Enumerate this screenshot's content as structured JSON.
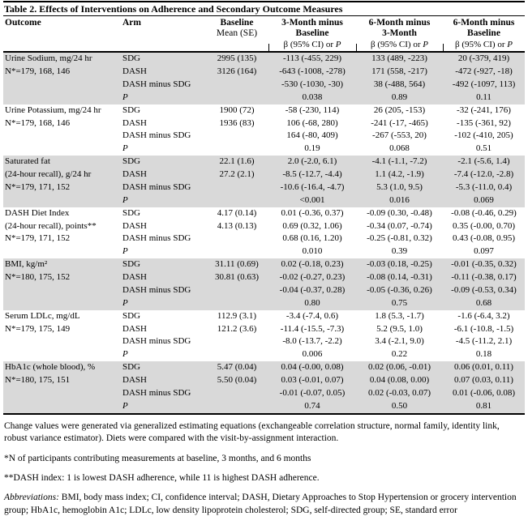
{
  "title": "Table 2. Effects of Interventions on Adherence and Secondary Outcome Measures",
  "colors": {
    "background": "#ffffff",
    "text": "#000000",
    "shaded_band": "#d9d9d9",
    "rule": "#000000"
  },
  "header": {
    "outcome": "Outcome",
    "arm": "Arm",
    "baseline": {
      "line1": "Baseline",
      "line2": "Mean (SE)"
    },
    "deltas": [
      {
        "line1": "3-Month minus",
        "line2": "Baseline"
      },
      {
        "line1": "6-Month minus",
        "line2": "3-Month"
      },
      {
        "line1": "6-Month minus",
        "line2": "Baseline"
      }
    ],
    "beta_prefix": "β (95% CI) or ",
    "beta_p": "P"
  },
  "groups": [
    {
      "outcome_lines": [
        "Urine Sodium, mg/24 hr",
        "N*=179, 168, 146"
      ],
      "shaded": true,
      "rows": [
        {
          "arm": "SDG",
          "baseline": "2995 (135)",
          "cells": [
            "-113 (-455, 229)",
            "133 (489, -223)",
            "20 (-379, 419)"
          ]
        },
        {
          "arm": "DASH",
          "baseline": "3126 (164)",
          "cells": [
            "-643 (-1008, -278)",
            "171 (558, -217)",
            "-472 (-927, -18)"
          ]
        },
        {
          "arm": "DASH minus SDG",
          "baseline": "",
          "cells": [
            "-530 (-1030, -30)",
            "38 (-488, 564)",
            "-492 (-1097, 113)"
          ]
        },
        {
          "arm": "P",
          "baseline": "",
          "cells": [
            "0.038",
            "0.89",
            "0.11"
          ]
        }
      ]
    },
    {
      "outcome_lines": [
        "Urine Potassium, mg/24 hr",
        "N*=179, 168, 146"
      ],
      "shaded": false,
      "rows": [
        {
          "arm": "SDG",
          "baseline": "1900 (72)",
          "cells": [
            "-58 (-230, 114)",
            "26 (205, -153)",
            "-32 (-241, 176)"
          ]
        },
        {
          "arm": "DASH",
          "baseline": "1936 (83)",
          "cells": [
            "106 (-68, 280)",
            "-241 (-17, -465)",
            "-135 (-361, 92)"
          ]
        },
        {
          "arm": "DASH minus SDG",
          "baseline": "",
          "cells": [
            "164 (-80, 409)",
            "-267 (-553, 20)",
            "-102 (-410, 205)"
          ]
        },
        {
          "arm": "P",
          "baseline": "",
          "cells": [
            "0.19",
            "0.068",
            "0.51"
          ]
        }
      ]
    },
    {
      "outcome_lines": [
        "Saturated fat",
        "(24-hour recall), g/24 hr",
        "N*=179, 171, 152"
      ],
      "shaded": true,
      "rows": [
        {
          "arm": "SDG",
          "baseline": "22.1 (1.6)",
          "cells": [
            "2.0 (-2.0, 6.1)",
            "-4.1 (-1.1, -7.2)",
            "-2.1 (-5.6, 1.4)"
          ]
        },
        {
          "arm": "DASH",
          "baseline": "27.2 (2.1)",
          "cells": [
            "-8.5 (-12.7, -4.4)",
            "1.1 (4.2, -1.9)",
            "-7.4 (-12.0, -2.8)"
          ]
        },
        {
          "arm": "DASH minus SDG",
          "baseline": "",
          "cells": [
            "-10.6 (-16.4, -4.7)",
            "5.3 (1.0, 9.5)",
            "-5.3 (-11.0, 0.4)"
          ]
        },
        {
          "arm": "P",
          "baseline": "",
          "cells": [
            "<0.001",
            "0.016",
            "0.069"
          ]
        }
      ]
    },
    {
      "outcome_lines": [
        "DASH Diet Index",
        "(24-hour recall), points**",
        "N*=179, 171, 152"
      ],
      "shaded": false,
      "rows": [
        {
          "arm": "SDG",
          "baseline": "4.17 (0.14)",
          "cells": [
            "0.01 (-0.36, 0.37)",
            "-0.09 (0.30, -0.48)",
            "-0.08 (-0.46, 0.29)"
          ]
        },
        {
          "arm": "DASH",
          "baseline": "4.13 (0.13)",
          "cells": [
            "0.69 (0.32, 1.06)",
            "-0.34 (0.07, -0.74)",
            "0.35 (-0.00, 0.70)"
          ]
        },
        {
          "arm": "DASH minus SDG",
          "baseline": "",
          "cells": [
            "0.68 (0.16, 1.20)",
            "-0.25 (-0.81, 0.32)",
            "0.43 (-0.08, 0.95)"
          ]
        },
        {
          "arm": "P",
          "baseline": "",
          "cells": [
            "0.010",
            "0.39",
            "0.097"
          ]
        }
      ]
    },
    {
      "outcome_lines": [
        "BMI, kg/m²",
        "N*=180, 175, 152"
      ],
      "shaded": true,
      "rows": [
        {
          "arm": "SDG",
          "baseline": "31.11 (0.69)",
          "cells": [
            "0.02 (-0.18, 0.23)",
            "-0.03 (0.18, -0.25)",
            "-0.01 (-0.35, 0.32)"
          ]
        },
        {
          "arm": "DASH",
          "baseline": "30.81 (0.63)",
          "cells": [
            "-0.02 (-0.27, 0.23)",
            "-0.08 (0.14, -0.31)",
            "-0.11 (-0.38, 0.17)"
          ]
        },
        {
          "arm": "DASH minus SDG",
          "baseline": "",
          "cells": [
            "-0.04 (-0.37, 0.28)",
            "-0.05 (-0.36, 0.26)",
            "-0.09 (-0.53, 0.34)"
          ]
        },
        {
          "arm": "P",
          "baseline": "",
          "cells": [
            "0.80",
            "0.75",
            "0.68"
          ]
        }
      ]
    },
    {
      "outcome_lines": [
        "Serum LDLc, mg/dL",
        "N*=179, 175, 149"
      ],
      "shaded": false,
      "rows": [
        {
          "arm": "SDG",
          "baseline": "112.9 (3.1)",
          "cells": [
            "-3.4 (-7.4, 0.6)",
            "1.8 (5.3, -1.7)",
            "-1.6 (-6.4, 3.2)"
          ]
        },
        {
          "arm": "DASH",
          "baseline": "121.2 (3.6)",
          "cells": [
            "-11.4 (-15.5, -7.3)",
            "5.2 (9.5, 1.0)",
            "-6.1 (-10.8, -1.5)"
          ]
        },
        {
          "arm": "DASH minus SDG",
          "baseline": "",
          "cells": [
            "-8.0 (-13.7, -2.2)",
            "3.4 (-2.1, 9.0)",
            "-4.5 (-11.2, 2.1)"
          ]
        },
        {
          "arm": "P",
          "baseline": "",
          "cells": [
            "0.006",
            "0.22",
            "0.18"
          ]
        }
      ]
    },
    {
      "outcome_lines": [
        "HbA1c (whole blood), %",
        "N*=180, 175, 151"
      ],
      "shaded": true,
      "rows": [
        {
          "arm": "SDG",
          "baseline": "5.47 (0.04)",
          "cells": [
            "0.04 (-0.00, 0.08)",
            "0.02 (0.06, -0.01)",
            "0.06 (0.01, 0.11)"
          ]
        },
        {
          "arm": "DASH",
          "baseline": "5.50 (0.04)",
          "cells": [
            "0.03 (-0.01, 0.07)",
            "0.04 (0.08, 0.00)",
            "0.07 (0.03, 0.11)"
          ]
        },
        {
          "arm": "DASH minus SDG",
          "baseline": "",
          "cells": [
            "-0.01 (-0.07, 0.05)",
            "0.02 (-0.03, 0.07)",
            "0.01 (-0.06, 0.08)"
          ]
        },
        {
          "arm": "P",
          "baseline": "",
          "cells": [
            "0.74",
            "0.50",
            "0.81"
          ]
        }
      ]
    }
  ],
  "footnotes": [
    {
      "text": "Change values were generated via generalized estimating equations (exchangeable correlation structure, normal family, identity link, robust variance estimator). Diets were compared with the visit-by-assignment interaction."
    },
    {
      "text": "*N of participants contributing measurements at baseline, 3 months, and 6 months"
    },
    {
      "text": "**DASH index: 1 is lowest DASH adherence, while 11 is highest DASH adherence."
    },
    {
      "label": "Abbreviations:",
      "text": " BMI, body mass index; CI, confidence interval; DASH, Dietary Approaches to Stop Hypertension or grocery intervention group; HbA1c, hemoglobin A1c; LDLc, low density lipoprotein cholesterol; SDG, self-directed group; SE, standard error"
    }
  ]
}
